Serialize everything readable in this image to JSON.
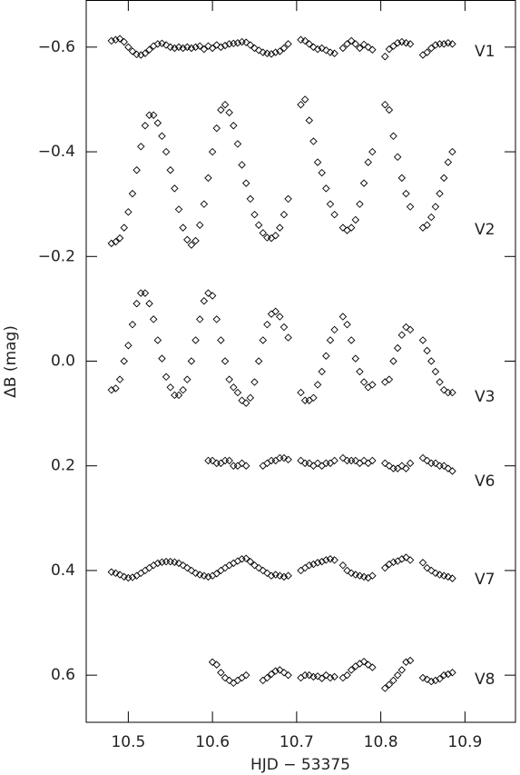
{
  "chart_data": {
    "type": "scatter",
    "x_label": "HJD − 53375",
    "y_label": "ΔB (mag)",
    "xlim": [
      10.45,
      10.96
    ],
    "ylim": [
      0.69,
      -0.69
    ],
    "xticks": [
      10.5,
      10.6,
      10.7,
      10.8,
      10.9
    ],
    "yticks": [
      {
        "value": -0.6,
        "label": "−0.6"
      },
      {
        "value": -0.4,
        "label": "−0.4"
      },
      {
        "value": -0.2,
        "label": "−0.2"
      },
      {
        "value": 0,
        "label": "0.0"
      },
      0.2,
      0.4,
      0.6
    ],
    "marker": "open-diamond",
    "x": [
      10.48,
      10.485,
      10.49,
      10.495,
      10.5,
      10.505,
      10.51,
      10.515,
      10.52,
      10.525,
      10.53,
      10.535,
      10.54,
      10.545,
      10.55,
      10.555,
      10.56,
      10.565,
      10.57,
      10.575,
      10.58,
      10.585,
      10.59,
      10.595,
      10.6,
      10.605,
      10.61,
      10.615,
      10.62,
      10.625,
      10.63,
      10.635,
      10.64,
      10.645,
      10.65,
      10.655,
      10.66,
      10.665,
      10.67,
      10.675,
      10.68,
      10.685,
      10.69,
      10.705,
      10.71,
      10.715,
      10.72,
      10.725,
      10.73,
      10.735,
      10.74,
      10.745,
      10.755,
      10.76,
      10.765,
      10.77,
      10.775,
      10.78,
      10.785,
      10.79,
      10.805,
      10.81,
      10.815,
      10.82,
      10.825,
      10.83,
      10.835,
      10.85,
      10.855,
      10.86,
      10.865,
      10.87,
      10.875,
      10.88,
      10.885
    ],
    "series": [
      {
        "name": "V1",
        "color": "#000000",
        "values": [
          -0.612,
          -0.614,
          -0.616,
          -0.61,
          -0.6,
          -0.592,
          -0.586,
          -0.585,
          -0.588,
          -0.595,
          -0.602,
          -0.606,
          -0.607,
          -0.604,
          -0.6,
          -0.598,
          -0.6,
          -0.598,
          -0.6,
          -0.598,
          -0.6,
          -0.602,
          -0.596,
          -0.602,
          -0.598,
          -0.604,
          -0.6,
          -0.603,
          -0.606,
          -0.607,
          -0.608,
          -0.61,
          -0.609,
          -0.604,
          -0.598,
          -0.594,
          -0.59,
          -0.588,
          -0.587,
          -0.59,
          -0.592,
          -0.598,
          -0.606,
          -0.614,
          -0.612,
          -0.606,
          -0.6,
          -0.596,
          -0.598,
          -0.594,
          -0.59,
          -0.588,
          -0.598,
          -0.606,
          -0.612,
          -0.606,
          -0.598,
          -0.605,
          -0.6,
          -0.595,
          -0.582,
          -0.596,
          -0.602,
          -0.608,
          -0.61,
          -0.608,
          -0.606,
          -0.585,
          -0.59,
          -0.598,
          -0.604,
          -0.606,
          -0.606,
          -0.608,
          -0.606
        ]
      },
      {
        "name": "V2",
        "color": "#000000",
        "values": [
          -0.225,
          -0.228,
          -0.235,
          -0.255,
          -0.285,
          -0.32,
          -0.365,
          -0.41,
          -0.45,
          -0.47,
          -0.47,
          -0.455,
          -0.43,
          -0.4,
          -0.365,
          -0.33,
          -0.29,
          -0.255,
          -0.232,
          -0.222,
          -0.23,
          -0.26,
          -0.3,
          -0.35,
          -0.4,
          -0.445,
          -0.48,
          -0.49,
          -0.475,
          -0.45,
          -0.415,
          -0.375,
          -0.34,
          -0.31,
          -0.28,
          -0.26,
          -0.245,
          -0.236,
          -0.235,
          -0.24,
          -0.255,
          -0.28,
          -0.31,
          -0.49,
          -0.5,
          -0.46,
          -0.42,
          -0.38,
          -0.36,
          -0.33,
          -0.3,
          -0.28,
          -0.255,
          -0.25,
          -0.255,
          -0.27,
          -0.3,
          -0.34,
          -0.38,
          -0.4,
          -0.49,
          -0.48,
          -0.43,
          -0.39,
          -0.35,
          -0.32,
          -0.295,
          -0.255,
          -0.26,
          -0.275,
          -0.295,
          -0.32,
          -0.35,
          -0.38,
          -0.4
        ]
      },
      {
        "name": "V3",
        "color": "#000000",
        "values": [
          0.055,
          0.052,
          0.035,
          0,
          -0.03,
          -0.07,
          -0.11,
          -0.13,
          -0.13,
          -0.11,
          -0.08,
          -0.04,
          -0.005,
          0.03,
          0.05,
          0.065,
          0.065,
          0.055,
          0.035,
          0,
          -0.04,
          -0.08,
          -0.115,
          -0.13,
          -0.125,
          -0.08,
          -0.04,
          0,
          0.035,
          0.05,
          0.06,
          0.075,
          0.08,
          0.07,
          0.04,
          0,
          -0.04,
          -0.07,
          -0.09,
          -0.095,
          -0.085,
          -0.065,
          -0.045,
          0.06,
          0.075,
          0.075,
          0.07,
          0.045,
          0.02,
          -0.01,
          -0.04,
          -0.06,
          -0.085,
          -0.07,
          -0.04,
          -0.005,
          0.02,
          0.04,
          0.05,
          0.045,
          0.04,
          0.035,
          0,
          -0.025,
          -0.05,
          -0.065,
          -0.06,
          -0.04,
          -0.02,
          0,
          0.02,
          0.04,
          0.055,
          0.06,
          0.06
        ]
      },
      {
        "name": "V6",
        "color": "#000000",
        "values": [
          null,
          null,
          null,
          null,
          null,
          null,
          null,
          null,
          null,
          null,
          null,
          null,
          null,
          null,
          null,
          null,
          null,
          null,
          null,
          null,
          null,
          null,
          null,
          0.19,
          0.19,
          0.195,
          0.195,
          0.19,
          0.19,
          0.2,
          0.2,
          0.195,
          0.2,
          null,
          null,
          null,
          0.2,
          0.195,
          0.19,
          0.19,
          0.185,
          0.185,
          0.188,
          0.19,
          0.195,
          0.195,
          0.2,
          0.195,
          0.2,
          0.195,
          0.195,
          0.19,
          0.185,
          0.19,
          0.19,
          0.19,
          0.195,
          0.19,
          0.195,
          0.19,
          0.195,
          0.2,
          0.205,
          0.205,
          0.2,
          0.205,
          0.195,
          0.185,
          0.19,
          0.195,
          0.195,
          0.2,
          0.2,
          0.205,
          0.21
        ]
      },
      {
        "name": "V7",
        "color": "#000000",
        "values": [
          0.403,
          0.405,
          0.408,
          0.412,
          0.414,
          0.413,
          0.41,
          0.405,
          0.4,
          0.395,
          0.39,
          0.386,
          0.384,
          0.383,
          0.383,
          0.384,
          0.386,
          0.39,
          0.395,
          0.4,
          0.405,
          0.408,
          0.41,
          0.412,
          0.41,
          0.406,
          0.4,
          0.395,
          0.39,
          0.386,
          0.382,
          0.378,
          0.377,
          0.383,
          0.39,
          0.395,
          0.4,
          0.405,
          0.41,
          0.408,
          0.41,
          0.412,
          0.41,
          0.4,
          0.395,
          0.39,
          0.388,
          0.385,
          0.383,
          0.38,
          0.378,
          0.38,
          0.39,
          0.4,
          0.405,
          0.408,
          0.41,
          0.412,
          0.414,
          0.41,
          0.395,
          0.388,
          0.384,
          0.382,
          0.378,
          0.375,
          0.38,
          0.385,
          0.395,
          0.4,
          0.405,
          0.408,
          0.41,
          0.412,
          0.415
        ]
      },
      {
        "name": "V8",
        "color": "#000000",
        "values": [
          null,
          null,
          null,
          null,
          null,
          null,
          null,
          null,
          null,
          null,
          null,
          null,
          null,
          null,
          null,
          null,
          null,
          null,
          null,
          null,
          null,
          null,
          null,
          null,
          0.575,
          0.58,
          0.595,
          0.605,
          0.61,
          0.615,
          0.61,
          0.605,
          0.6,
          null,
          null,
          null,
          0.61,
          0.605,
          0.598,
          0.592,
          0.59,
          0.595,
          0.6,
          0.605,
          0.6,
          0.6,
          0.603,
          0.602,
          0.606,
          0.6,
          0.605,
          0.603,
          0.605,
          0.6,
          0.59,
          0.583,
          0.578,
          0.574,
          0.58,
          0.585,
          0.625,
          0.618,
          0.61,
          0.6,
          0.59,
          0.575,
          0.572,
          0.605,
          0.608,
          0.612,
          0.61,
          0.607,
          0.6,
          0.598,
          0.595
        ]
      }
    ]
  }
}
